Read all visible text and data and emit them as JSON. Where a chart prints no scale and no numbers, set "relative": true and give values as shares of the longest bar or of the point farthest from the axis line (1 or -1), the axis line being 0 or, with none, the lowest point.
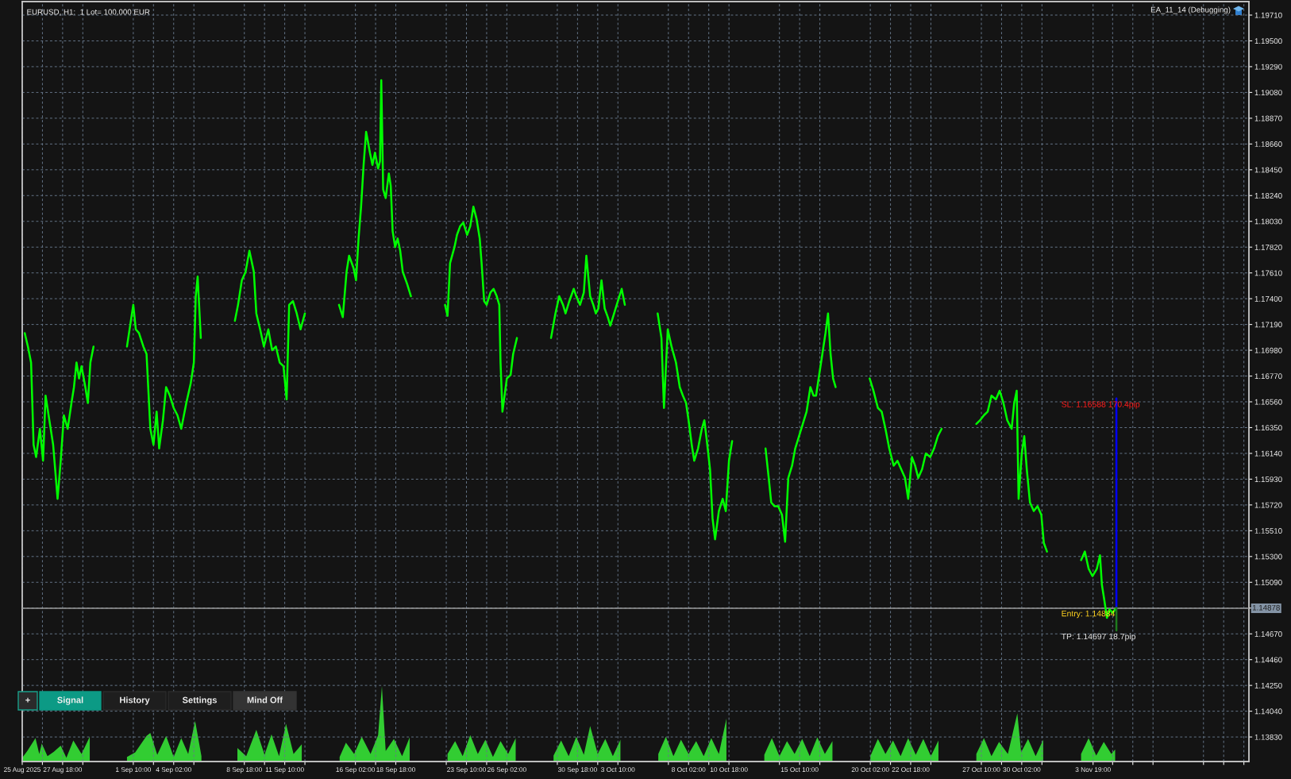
{
  "chart_data": [
    {
      "type": "line",
      "title": "EURUSD, H1:  1 Lot= 100,000 EUR",
      "annotations": [
        "EA_11_14 (Debugging)",
        {
          "text": "SL: 1.16588 170.4pip",
          "x": "2025-11-05T08:00",
          "y": 1.16588
        },
        {
          "text": "Entry: 1.14884",
          "x": "2025-11-05T08:00",
          "y": 1.14884
        },
        {
          "text": "TP: 1.14697 18.7pip",
          "x": "2025-11-05T08:00",
          "y": 1.14697
        },
        "+",
        "Signal",
        "History",
        "Settings",
        "Mind Off"
      ],
      "series": [
        {
          "color": "#00ff00",
          "x": [
            "2025-08-25T06:00",
            "2025-08-25T11:00",
            "2025-08-25T16:00",
            "2025-08-25T20:00",
            "2025-08-26T00:00",
            "2025-08-26T06:00",
            "2025-08-26T11:00",
            "2025-08-26T15:00",
            "2025-08-26T21:00",
            "2025-08-27T03:00",
            "2025-08-27T10:00",
            "2025-08-27T15:00",
            "2025-08-27T20:00",
            "2025-08-28T02:00",
            "2025-08-28T08:00",
            "2025-08-28T12:00",
            "2025-08-28T16:00",
            "2025-08-28T20:00",
            "2025-08-29T00:00",
            "2025-08-29T06:00",
            "2025-08-29T10:00",
            "2025-08-29T14:00",
            "2025-08-29T19:00",
            "2025-08-30T12:00",
            "2025-09-01T00:00",
            "2025-09-01T05:00",
            "2025-09-01T10:00",
            "2025-09-01T14:00",
            "2025-09-01T19:00",
            "2025-09-02T02:00",
            "2025-09-02T07:00",
            "2025-09-02T13:00",
            "2025-09-02T18:00",
            "2025-09-02T23:00",
            "2025-09-03T03:00",
            "2025-09-03T09:00",
            "2025-09-03T14:00",
            "2025-09-03T20:00",
            "2025-09-04T02:00",
            "2025-09-04T08:00",
            "2025-09-04T14:00",
            "2025-09-04T22:00",
            "2025-09-05T05:00",
            "2025-09-05T10:00",
            "2025-09-05T13:00",
            "2025-09-05T16:00",
            "2025-09-05T21:00",
            "2025-09-06T12:00",
            "2025-09-08T03:00",
            "2025-09-08T08:00",
            "2025-09-08T14:00",
            "2025-09-08T20:00",
            "2025-09-09T02:00",
            "2025-09-09T09:00",
            "2025-09-09T13:00",
            "2025-09-09T19:00",
            "2025-09-10T01:00",
            "2025-09-10T08:00",
            "2025-09-10T14:00",
            "2025-09-10T20:00",
            "2025-09-11T02:00",
            "2025-09-11T08:00",
            "2025-09-11T13:00",
            "2025-09-11T17:00",
            "2025-09-11T23:00",
            "2025-09-12T05:00",
            "2025-09-12T11:00",
            "2025-09-12T18:00",
            "2025-09-13T12:00",
            "2025-09-15T00:00",
            "2025-09-15T06:00",
            "2025-09-15T12:00",
            "2025-09-15T16:00",
            "2025-09-15T23:00",
            "2025-09-16T03:00",
            "2025-09-16T07:00",
            "2025-09-16T11:00",
            "2025-09-16T15:00",
            "2025-09-16T19:00",
            "2025-09-17T01:00",
            "2025-09-17T05:00",
            "2025-09-17T09:00",
            "2025-09-17T14:00",
            "2025-09-17T17:00",
            "2025-09-17T19:00",
            "2025-09-17T22:00",
            "2025-09-18T02:00",
            "2025-09-18T07:00",
            "2025-09-18T10:00",
            "2025-09-18T13:00",
            "2025-09-18T17:00",
            "2025-09-18T21:00",
            "2025-09-19T01:00",
            "2025-09-19T05:00",
            "2025-09-19T12:00",
            "2025-09-19T18:00",
            "2025-09-20T12:00",
            "2025-09-22T00:00",
            "2025-09-22T04:00",
            "2025-09-22T08:00",
            "2025-09-22T15:00",
            "2025-09-22T19:00",
            "2025-09-23T00:00",
            "2025-09-23T05:00",
            "2025-09-23T11:00",
            "2025-09-23T16:00",
            "2025-09-23T21:00",
            "2025-09-24T02:00",
            "2025-09-24T07:00",
            "2025-09-24T10:00",
            "2025-09-24T14:00",
            "2025-09-24T18:00",
            "2025-09-25T00:00",
            "2025-09-25T05:00",
            "2025-09-25T10:00",
            "2025-09-25T14:00",
            "2025-09-25T16:00",
            "2025-09-25T19:00",
            "2025-09-26T02:00",
            "2025-09-26T08:00",
            "2025-09-26T12:00",
            "2025-09-26T18:00",
            "2025-09-27T12:00",
            "2025-09-29T00:00",
            "2025-09-29T07:00",
            "2025-09-29T13:00",
            "2025-09-29T19:00",
            "2025-09-29T23:00",
            "2025-09-30T05:00",
            "2025-09-30T12:00",
            "2025-09-30T16:00",
            "2025-09-30T22:00",
            "2025-10-01T04:00",
            "2025-10-01T08:00",
            "2025-10-01T14:00",
            "2025-10-01T19:00",
            "2025-10-01T23:00",
            "2025-10-02T03:00",
            "2025-10-02T08:00",
            "2025-10-02T13:00",
            "2025-10-02T18:00",
            "2025-10-02T22:00",
            "2025-10-03T04:00",
            "2025-10-03T10:00",
            "2025-10-03T16:00",
            "2025-10-03T21:00",
            "2025-10-04T12:00",
            "2025-10-06T01:00",
            "2025-10-06T07:00",
            "2025-10-06T11:00",
            "2025-10-06T17:00",
            "2025-10-06T23:00",
            "2025-10-07T06:00",
            "2025-10-07T12:00",
            "2025-10-07T17:00",
            "2025-10-07T22:00",
            "2025-10-08T02:00",
            "2025-10-08T07:00",
            "2025-10-08T11:00",
            "2025-10-08T17:00",
            "2025-10-08T23:00",
            "2025-10-09T03:00",
            "2025-10-09T07:00",
            "2025-10-09T12:00",
            "2025-10-09T16:00",
            "2025-10-09T20:00",
            "2025-10-10T02:00",
            "2025-10-10T08:00",
            "2025-10-10T13:00",
            "2025-10-10T18:00",
            "2025-10-10T23:00",
            "2025-10-11T12:00",
            "2025-10-13T04:00",
            "2025-10-13T09:00",
            "2025-10-13T13:00",
            "2025-10-13T18:00",
            "2025-10-14T00:00",
            "2025-10-14T06:00",
            "2025-10-14T11:00",
            "2025-10-14T16:00",
            "2025-10-14T22:00",
            "2025-10-15T03:00",
            "2025-10-15T09:00",
            "2025-10-15T15:00",
            "2025-10-15T21:00",
            "2025-10-16T03:00",
            "2025-10-16T08:00",
            "2025-10-16T12:00",
            "2025-10-16T17:00",
            "2025-10-16T22:00",
            "2025-10-17T03:00",
            "2025-10-17T07:00",
            "2025-10-17T11:00",
            "2025-10-17T15:00",
            "2025-10-17T19:00",
            "2025-10-18T12:00",
            "2025-10-20T01:00",
            "2025-10-20T07:00",
            "2025-10-20T14:00",
            "2025-10-20T20:00",
            "2025-10-21T02:00",
            "2025-10-21T08:00",
            "2025-10-21T15:00",
            "2025-10-21T21:00",
            "2025-10-22T03:00",
            "2025-10-22T09:00",
            "2025-10-22T14:00",
            "2025-10-22T20:00",
            "2025-10-23T01:00",
            "2025-10-23T06:00",
            "2025-10-23T12:00",
            "2025-10-23T18:00",
            "2025-10-24T01:00",
            "2025-10-24T07:00",
            "2025-10-24T13:00",
            "2025-10-24T19:00",
            "2025-10-25T12:00",
            "2025-10-27T02:00",
            "2025-10-27T08:00",
            "2025-10-27T14:00",
            "2025-10-27T20:00",
            "2025-10-28T02:00",
            "2025-10-28T09:00",
            "2025-10-28T15:00",
            "2025-10-28T21:00",
            "2025-10-29T03:00",
            "2025-10-29T10:00",
            "2025-10-29T14:00",
            "2025-10-29T18:00",
            "2025-10-29T21:00",
            "2025-10-30T02:00",
            "2025-10-30T06:00",
            "2025-10-30T10:00",
            "2025-10-30T15:00",
            "2025-10-30T21:00",
            "2025-10-31T03:00",
            "2025-10-31T09:00",
            "2025-10-31T13:00",
            "2025-10-31T18:00",
            "2025-11-01T12:00",
            "2025-11-03T00:00",
            "2025-11-03T06:00",
            "2025-11-03T12:00",
            "2025-11-03T18:00",
            "2025-11-04T01:00",
            "2025-11-04T06:00",
            "2025-11-04T09:00",
            "2025-11-04T13:00",
            "2025-11-04T17:00",
            "2025-11-04T21:00",
            "2025-11-05T02:00",
            "2025-11-05T06:00"
          ],
          "values": [
            1.1712,
            1.1701,
            1.1688,
            1.1621,
            1.1611,
            1.1634,
            1.1608,
            1.1661,
            1.1641,
            1.1621,
            1.1577,
            1.1608,
            1.1645,
            1.1634,
            1.1655,
            1.1668,
            1.1688,
            1.1675,
            1.1685,
            1.1668,
            1.1655,
            1.1688,
            1.1701,
            null,
            1.1701,
            1.1718,
            1.1735,
            1.1715,
            1.1712,
            1.1701,
            1.1695,
            1.1634,
            1.1621,
            1.1648,
            1.1618,
            1.1641,
            1.1668,
            1.1661,
            1.1651,
            1.1645,
            1.1634,
            1.1655,
            1.1671,
            1.1688,
            1.1742,
            1.1758,
            1.1708,
            null,
            1.1722,
            1.1735,
            1.1755,
            1.1762,
            1.1779,
            1.1762,
            1.1728,
            1.1715,
            1.1701,
            1.1715,
            1.1698,
            1.1701,
            1.1688,
            1.1685,
            1.1658,
            1.1735,
            1.1738,
            1.1728,
            1.1715,
            1.1728,
            null,
            1.1735,
            1.1725,
            1.1762,
            1.1775,
            1.1765,
            1.1755,
            1.1789,
            1.1815,
            1.1849,
            1.1876,
            1.1859,
            1.1849,
            1.1859,
            1.1846,
            1.1852,
            1.1918,
            1.1829,
            1.1822,
            1.1842,
            1.1832,
            1.1795,
            1.1782,
            1.1789,
            1.1779,
            1.1762,
            1.1752,
            1.1742,
            null,
            1.1735,
            1.1726,
            1.1769,
            1.1782,
            1.1792,
            1.1799,
            1.1802,
            1.1792,
            1.1799,
            1.1815,
            1.1805,
            1.1789,
            1.1769,
            1.1738,
            1.1735,
            1.1745,
            1.1748,
            1.1742,
            1.1735,
            1.1688,
            1.1648,
            1.1675,
            1.1678,
            1.1695,
            1.1708,
            null,
            1.1708,
            1.1728,
            1.1742,
            1.1735,
            1.1728,
            1.1738,
            1.1748,
            1.1742,
            1.1735,
            1.1745,
            1.1775,
            1.1742,
            1.1735,
            1.1728,
            1.1732,
            1.1755,
            1.1732,
            1.1725,
            1.1718,
            1.1728,
            1.1738,
            1.1748,
            1.1735,
            null,
            1.1728,
            1.1708,
            1.1651,
            1.1715,
            1.1701,
            1.1688,
            1.1668,
            1.1661,
            1.1655,
            1.1641,
            1.1621,
            1.1608,
            1.1618,
            1.1634,
            1.1641,
            1.1624,
            1.1601,
            1.1561,
            1.1544,
            1.1567,
            1.1577,
            1.1567,
            1.1608,
            1.1624,
            null,
            1.1618,
            1.1594,
            1.1574,
            1.1571,
            1.1571,
            1.1564,
            1.1542,
            1.1594,
            1.1604,
            1.1618,
            1.1628,
            1.1638,
            1.1648,
            1.1668,
            1.1661,
            1.1661,
            1.1678,
            1.1695,
            1.1712,
            1.1728,
            1.1695,
            1.1675,
            1.1668,
            null,
            1.1675,
            1.1665,
            1.1651,
            1.1648,
            1.1634,
            1.1618,
            1.1604,
            1.1608,
            1.1601,
            1.1594,
            1.1577,
            1.1611,
            1.1604,
            1.1594,
            1.1601,
            1.1614,
            1.1611,
            1.1618,
            1.1628,
            1.1634,
            null,
            1.1638,
            1.1641,
            1.1645,
            1.1648,
            1.1661,
            1.1658,
            1.1665,
            1.1655,
            1.1641,
            1.1634,
            1.1655,
            1.1665,
            1.1577,
            1.1614,
            1.1628,
            1.1601,
            1.1574,
            1.1567,
            1.1571,
            1.1564,
            1.1541,
            1.1534,
            null,
            1.1527,
            1.1534,
            1.152,
            1.1514,
            1.152,
            1.1531,
            1.1507,
            1.1494,
            1.148,
            1.1487,
            1.1484,
            1.1487
          ]
        },
        {
          "color": "#0000ff",
          "x": [
            "2025-11-05T08:00",
            "2025-11-05T08:00"
          ],
          "values": [
            1.14884,
            1.16588
          ]
        },
        {
          "color": "#1e7b1e",
          "x": [
            "2025-11-05T08:00",
            "2025-11-05T08:00"
          ],
          "values": [
            1.14884,
            1.14697
          ]
        }
      ],
      "xlim": [
        "2025-08-25T02:00",
        "2025-11-14T02:00"
      ],
      "xticks": [
        {
          "value": "2025-08-25T02:00",
          "label": "25 Aug 2025"
        },
        {
          "value": "2025-08-26T10:00",
          "label": null
        },
        {
          "value": "2025-08-27T18:00",
          "label": "27 Aug 18:00"
        },
        {
          "value": "2025-08-29T02:00",
          "label": null
        },
        {
          "value": "2025-09-01T10:00",
          "label": "1 Sep 10:00"
        },
        {
          "value": "2025-09-02T18:00",
          "label": null
        },
        {
          "value": "2025-09-04T02:00",
          "label": "4 Sep 02:00"
        },
        {
          "value": "2025-09-05T10:00",
          "label": null
        },
        {
          "value": "2025-09-08T18:00",
          "label": "8 Sep 18:00"
        },
        {
          "value": "2025-09-10T02:00",
          "label": null
        },
        {
          "value": "2025-09-11T10:00",
          "label": "11 Sep 10:00"
        },
        {
          "value": "2025-09-12T18:00",
          "label": null
        },
        {
          "value": "2025-09-16T02:00",
          "label": "16 Sep 02:00"
        },
        {
          "value": "2025-09-17T10:00",
          "label": null
        },
        {
          "value": "2025-09-18T18:00",
          "label": "18 Sep 18:00"
        },
        {
          "value": "2025-09-22T02:00",
          "label": null
        },
        {
          "value": "2025-09-23T10:00",
          "label": "23 Sep 10:00"
        },
        {
          "value": "2025-09-24T18:00",
          "label": null
        },
        {
          "value": "2025-09-26T02:00",
          "label": "26 Sep 02:00"
        },
        {
          "value": "2025-09-29T10:00",
          "label": null
        },
        {
          "value": "2025-09-30T18:00",
          "label": "30 Sep 18:00"
        },
        {
          "value": "2025-10-02T02:00",
          "label": null
        },
        {
          "value": "2025-10-03T10:00",
          "label": "3 Oct 10:00"
        },
        {
          "value": "2025-10-06T18:00",
          "label": null
        },
        {
          "value": "2025-10-08T02:00",
          "label": "8 Oct 02:00"
        },
        {
          "value": "2025-10-09T10:00",
          "label": null
        },
        {
          "value": "2025-10-10T18:00",
          "label": "10 Oct 18:00"
        },
        {
          "value": "2025-10-14T02:00",
          "label": null
        },
        {
          "value": "2025-10-15T10:00",
          "label": "15 Oct 10:00"
        },
        {
          "value": "2025-10-16T18:00",
          "label": null
        },
        {
          "value": "2025-10-20T02:00",
          "label": "20 Oct 02:00"
        },
        {
          "value": "2025-10-21T10:00",
          "label": null
        },
        {
          "value": "2025-10-22T18:00",
          "label": "22 Oct 18:00"
        },
        {
          "value": "2025-10-24T02:00",
          "label": null
        },
        {
          "value": "2025-10-27T10:00",
          "label": "27 Oct 10:00"
        },
        {
          "value": "2025-10-28T18:00",
          "label": null
        },
        {
          "value": "2025-10-30T02:00",
          "label": "30 Oct 02:00"
        },
        {
          "value": "2025-10-31T10:00",
          "label": null
        },
        {
          "value": "2025-11-03T19:00",
          "label": "3 Nov 19:00"
        },
        {
          "value": "2025-11-05T02:00",
          "label": null
        },
        {
          "value": "2025-11-06T10:00",
          "label": null
        },
        {
          "value": "2025-11-07T18:00",
          "label": null
        },
        {
          "value": "2025-11-11T02:00",
          "label": null
        },
        {
          "value": "2025-11-12T10:00",
          "label": null
        },
        {
          "value": "2025-11-13T18:00",
          "label": null
        }
      ],
      "ylim": [
        1.1363,
        1.1982
      ],
      "yticks": [
        {
          "value": 1.1971,
          "label": "1.19710"
        },
        {
          "value": 1.195,
          "label": "1.19500"
        },
        {
          "value": 1.1929,
          "label": "1.19290"
        },
        {
          "value": 1.1908,
          "label": "1.19080"
        },
        {
          "value": 1.1887,
          "label": "1.18870"
        },
        {
          "value": 1.1866,
          "label": "1.18660"
        },
        {
          "value": 1.1845,
          "label": "1.18450"
        },
        {
          "value": 1.1824,
          "label": "1.18240"
        },
        {
          "value": 1.1803,
          "label": "1.18030"
        },
        {
          "value": 1.1782,
          "label": "1.17820"
        },
        {
          "value": 1.1761,
          "label": "1.17610"
        },
        {
          "value": 1.174,
          "label": "1.17400"
        },
        {
          "value": 1.1719,
          "label": "1.17190"
        },
        {
          "value": 1.1698,
          "label": "1.16980"
        },
        {
          "value": 1.1677,
          "label": "1.16770"
        },
        {
          "value": 1.1656,
          "label": "1.16560"
        },
        {
          "value": 1.1635,
          "label": "1.16350"
        },
        {
          "value": 1.1614,
          "label": "1.16140"
        },
        {
          "value": 1.1593,
          "label": "1.15930"
        },
        {
          "value": 1.1572,
          "label": "1.15720"
        },
        {
          "value": 1.1551,
          "label": "1.15510"
        },
        {
          "value": 1.153,
          "label": "1.15300"
        },
        {
          "value": 1.1509,
          "label": "1.15090"
        },
        {
          "value": 1.1488,
          "label": null
        },
        {
          "value": 1.1467,
          "label": "1.14670"
        },
        {
          "value": 1.1446,
          "label": "1.14460"
        },
        {
          "value": 1.1425,
          "label": "1.14250"
        },
        {
          "value": 1.1404,
          "label": "1.14040"
        },
        {
          "value": 1.1383,
          "label": "1.13830"
        }
      ],
      "grid": true,
      "ref_lines": [
        {
          "axis": "y",
          "value": 1.14878,
          "label": "1.14878",
          "color": "#9a9a9a"
        }
      ]
    },
    {
      "type": "area",
      "relative": true,
      "color": "#32cd32",
      "tick_labels": false,
      "xlim": [
        "2025-08-25T02:00",
        "2025-11-14T02:00"
      ],
      "x": [
        "2025-08-25T02:00",
        "2025-08-25T10:00",
        "2025-08-25T23:00",
        "2025-08-26T05:00",
        "2025-08-26T09:00",
        "2025-08-26T18:00",
        "2025-08-27T04:00",
        "2025-08-27T15:00",
        "2025-08-28T00:00",
        "2025-08-28T11:00",
        "2025-08-29T00:00",
        "2025-08-29T13:00",
        "2025-08-30T12:00",
        "2025-09-01T00:00",
        "2025-09-01T13:00",
        "2025-09-02T07:00",
        "2025-09-02T13:00",
        "2025-09-03T00:00",
        "2025-09-03T14:00",
        "2025-09-04T02:00",
        "2025-09-04T14:00",
        "2025-09-05T01:00",
        "2025-09-05T12:00",
        "2025-09-05T22:00",
        "2025-09-06T12:00",
        "2025-09-08T07:00",
        "2025-09-08T21:00",
        "2025-09-09T13:00",
        "2025-09-10T02:00",
        "2025-09-10T13:00",
        "2025-09-11T01:00",
        "2025-09-11T12:00",
        "2025-09-12T00:00",
        "2025-09-12T13:00",
        "2025-09-13T12:00",
        "2025-09-15T01:00",
        "2025-09-15T11:00",
        "2025-09-16T00:00",
        "2025-09-16T12:00",
        "2025-09-17T02:00",
        "2025-09-17T14:00",
        "2025-09-17T20:00",
        "2025-09-18T02:00",
        "2025-09-18T15:00",
        "2025-09-19T04:00",
        "2025-09-19T16:00",
        "2025-09-20T12:00",
        "2025-09-22T04:00",
        "2025-09-22T16:00",
        "2025-09-23T04:00",
        "2025-09-23T16:00",
        "2025-09-24T04:00",
        "2025-09-24T16:00",
        "2025-09-25T04:00",
        "2025-09-25T16:00",
        "2025-09-26T04:00",
        "2025-09-26T16:00",
        "2025-09-27T12:00",
        "2025-09-29T04:00",
        "2025-09-29T16:00",
        "2025-09-30T04:00",
        "2025-09-30T16:00",
        "2025-10-01T04:00",
        "2025-10-01T14:00",
        "2025-10-02T02:00",
        "2025-10-02T14:00",
        "2025-10-03T02:00",
        "2025-10-03T14:00",
        "2025-10-04T12:00",
        "2025-10-06T02:00",
        "2025-10-06T14:00",
        "2025-10-07T02:00",
        "2025-10-07T14:00",
        "2025-10-08T02:00",
        "2025-10-08T14:00",
        "2025-10-09T02:00",
        "2025-10-09T14:00",
        "2025-10-10T02:00",
        "2025-10-10T14:00",
        "2025-10-11T12:00",
        "2025-10-13T02:00",
        "2025-10-13T14:00",
        "2025-10-14T02:00",
        "2025-10-14T14:00",
        "2025-10-15T02:00",
        "2025-10-15T14:00",
        "2025-10-16T02:00",
        "2025-10-16T14:00",
        "2025-10-17T02:00",
        "2025-10-17T14:00",
        "2025-10-18T12:00",
        "2025-10-20T02:00",
        "2025-10-20T14:00",
        "2025-10-21T02:00",
        "2025-10-21T14:00",
        "2025-10-22T02:00",
        "2025-10-22T14:00",
        "2025-10-23T02:00",
        "2025-10-23T14:00",
        "2025-10-24T02:00",
        "2025-10-24T14:00",
        "2025-10-25T12:00",
        "2025-10-27T02:00",
        "2025-10-27T14:00",
        "2025-10-28T02:00",
        "2025-10-28T14:00",
        "2025-10-29T04:00",
        "2025-10-29T19:00",
        "2025-10-30T01:00",
        "2025-10-30T12:00",
        "2025-10-31T00:00",
        "2025-10-31T12:00",
        "2025-11-01T12:00",
        "2025-11-03T00:00",
        "2025-11-03T12:00",
        "2025-11-04T00:00",
        "2025-11-04T12:00",
        "2025-11-05T00:00",
        "2025-11-05T06:00"
      ],
      "values": [
        0.05,
        0.14,
        0.31,
        0.1,
        0.24,
        0.07,
        0.13,
        0.21,
        0.05,
        0.28,
        0.1,
        0.33,
        null,
        0.06,
        0.12,
        0.34,
        0.38,
        0.09,
        0.34,
        0.06,
        0.31,
        0.1,
        0.54,
        0.07,
        null,
        0.18,
        0.07,
        0.42,
        0.09,
        0.36,
        0.07,
        0.5,
        0.1,
        0.23,
        null,
        0.06,
        0.25,
        0.1,
        0.33,
        0.1,
        0.35,
        1.0,
        0.14,
        0.3,
        0.07,
        0.32,
        null,
        0.1,
        0.27,
        0.07,
        0.35,
        0.1,
        0.29,
        0.06,
        0.27,
        0.1,
        0.31,
        null,
        0.08,
        0.28,
        0.07,
        0.33,
        0.09,
        0.47,
        0.1,
        0.3,
        0.07,
        0.29,
        null,
        0.1,
        0.33,
        0.07,
        0.29,
        0.1,
        0.27,
        0.07,
        0.31,
        0.1,
        0.57,
        null,
        0.09,
        0.31,
        0.07,
        0.27,
        0.1,
        0.3,
        0.07,
        0.32,
        0.1,
        0.27,
        null,
        0.07,
        0.3,
        0.1,
        0.28,
        0.07,
        0.31,
        0.09,
        0.3,
        0.07,
        0.28,
        null,
        0.1,
        0.31,
        0.07,
        0.26,
        0.1,
        0.64,
        0.12,
        0.3,
        0.07,
        0.29,
        null,
        0.1,
        0.31,
        0.08,
        0.26,
        0.1,
        0.16
      ]
    }
  ]
}
